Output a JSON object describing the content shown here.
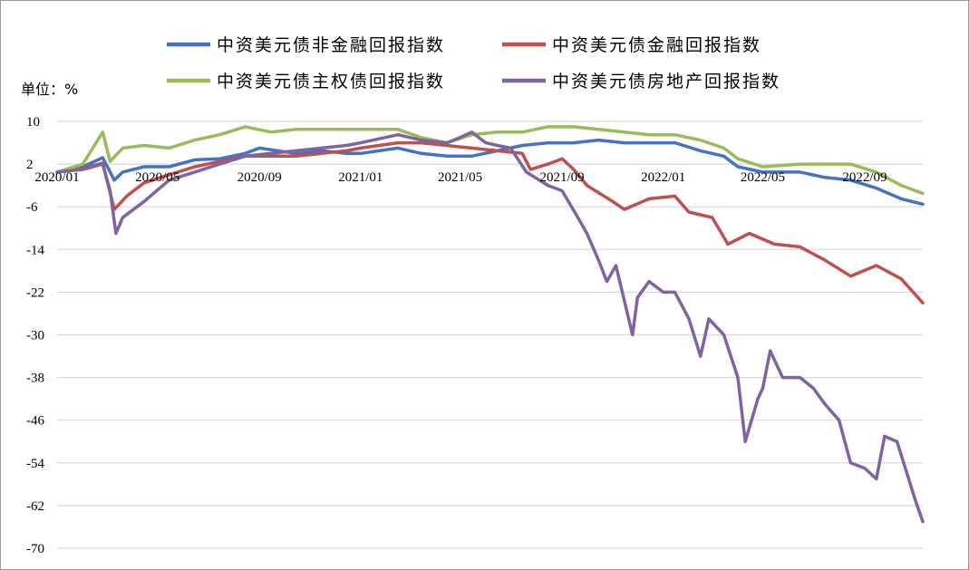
{
  "chart_data": {
    "type": "line",
    "ylabel": "单位：%",
    "ylim": [
      -70,
      10
    ],
    "yticks": [
      10,
      2,
      -6,
      -14,
      -22,
      -30,
      -38,
      -46,
      -54,
      -62,
      -70
    ],
    "x_ticks": [
      "2020/01",
      "2020/05",
      "2020/09",
      "2021/01",
      "2021/05",
      "2021/09",
      "2022/01",
      "2022/05",
      "2022/09"
    ],
    "x_range": [
      "2020/01",
      "2022/11"
    ],
    "grid": "horizontal",
    "legend_position": "top",
    "series": [
      {
        "name": "中资美元债非金融回报指数",
        "color": "#4472c4",
        "points": [
          [
            "2020/01/01",
            0.5
          ],
          [
            "2020/02/01",
            1.5
          ],
          [
            "2020/02/25",
            3.2
          ],
          [
            "2020/03/10",
            -1.0
          ],
          [
            "2020/03/20",
            0.5
          ],
          [
            "2020/04/15",
            1.5
          ],
          [
            "2020/05/15",
            1.5
          ],
          [
            "2020/06/15",
            2.8
          ],
          [
            "2020/07/15",
            3.0
          ],
          [
            "2020/08/15",
            4.0
          ],
          [
            "2020/09/01",
            5.0
          ],
          [
            "2020/10/15",
            4.0
          ],
          [
            "2020/11/15",
            4.5
          ],
          [
            "2020/12/15",
            4.0
          ],
          [
            "2021/01/01",
            4.0
          ],
          [
            "2021/02/15",
            5.0
          ],
          [
            "2021/03/15",
            4.0
          ],
          [
            "2021/04/15",
            3.5
          ],
          [
            "2021/05/15",
            3.5
          ],
          [
            "2021/06/15",
            4.5
          ],
          [
            "2021/07/15",
            5.5
          ],
          [
            "2021/08/15",
            6.0
          ],
          [
            "2021/09/15",
            6.0
          ],
          [
            "2021/10/15",
            6.5
          ],
          [
            "2021/11/15",
            6.0
          ],
          [
            "2021/12/15",
            6.0
          ],
          [
            "2022/01/15",
            6.0
          ],
          [
            "2022/02/15",
            4.5
          ],
          [
            "2022/03/15",
            3.5
          ],
          [
            "2022/04/01",
            1.5
          ],
          [
            "2022/05/01",
            0.5
          ],
          [
            "2022/06/15",
            0.5
          ],
          [
            "2022/07/15",
            -0.5
          ],
          [
            "2022/08/15",
            -1.0
          ],
          [
            "2022/09/15",
            -2.5
          ],
          [
            "2022/10/15",
            -4.5
          ],
          [
            "2022/11/10",
            -5.5
          ]
        ]
      },
      {
        "name": "中资美元债金融回报指数",
        "color": "#c0504d",
        "points": [
          [
            "2020/01/01",
            0.5
          ],
          [
            "2020/02/01",
            1.2
          ],
          [
            "2020/02/25",
            2.2
          ],
          [
            "2020/03/10",
            -6.5
          ],
          [
            "2020/03/25",
            -4.0
          ],
          [
            "2020/04/15",
            -1.5
          ],
          [
            "2020/05/15",
            0.0
          ],
          [
            "2020/06/15",
            1.5
          ],
          [
            "2020/07/15",
            2.5
          ],
          [
            "2020/08/15",
            3.5
          ],
          [
            "2020/09/15",
            3.5
          ],
          [
            "2020/10/15",
            3.5
          ],
          [
            "2020/11/15",
            4.0
          ],
          [
            "2020/12/15",
            4.5
          ],
          [
            "2021/01/01",
            5.0
          ],
          [
            "2021/02/15",
            6.0
          ],
          [
            "2021/03/15",
            6.0
          ],
          [
            "2021/04/15",
            5.5
          ],
          [
            "2021/05/15",
            5.0
          ],
          [
            "2021/06/15",
            4.5
          ],
          [
            "2021/07/15",
            4.0
          ],
          [
            "2021/07/25",
            1.0
          ],
          [
            "2021/08/15",
            2.0
          ],
          [
            "2021/09/01",
            3.0
          ],
          [
            "2021/09/15",
            1.0
          ],
          [
            "2021/10/01",
            -2.0
          ],
          [
            "2021/11/01",
            -5.0
          ],
          [
            "2021/11/15",
            -6.5
          ],
          [
            "2021/12/15",
            -4.5
          ],
          [
            "2022/01/15",
            -4.0
          ],
          [
            "2022/02/01",
            -7.0
          ],
          [
            "2022/03/01",
            -8.0
          ],
          [
            "2022/03/20",
            -13.0
          ],
          [
            "2022/04/15",
            -11.0
          ],
          [
            "2022/05/15",
            -13.0
          ],
          [
            "2022/06/15",
            -13.5
          ],
          [
            "2022/07/15",
            -16.0
          ],
          [
            "2022/08/15",
            -19.0
          ],
          [
            "2022/09/15",
            -17.0
          ],
          [
            "2022/10/15",
            -19.5
          ],
          [
            "2022/11/10",
            -24.0
          ]
        ]
      },
      {
        "name": "中资美元债主权债回报指数",
        "color": "#9bbb59",
        "points": [
          [
            "2020/01/01",
            0.5
          ],
          [
            "2020/02/01",
            2.0
          ],
          [
            "2020/02/25",
            8.0
          ],
          [
            "2020/03/05",
            2.5
          ],
          [
            "2020/03/20",
            5.0
          ],
          [
            "2020/04/15",
            5.5
          ],
          [
            "2020/05/15",
            5.0
          ],
          [
            "2020/06/15",
            6.5
          ],
          [
            "2020/07/15",
            7.5
          ],
          [
            "2020/08/15",
            9.0
          ],
          [
            "2020/09/15",
            8.0
          ],
          [
            "2020/10/15",
            8.5
          ],
          [
            "2020/11/15",
            8.5
          ],
          [
            "2020/12/15",
            8.5
          ],
          [
            "2021/01/01",
            8.5
          ],
          [
            "2021/02/15",
            8.5
          ],
          [
            "2021/03/15",
            7.0
          ],
          [
            "2021/04/15",
            6.0
          ],
          [
            "2021/05/15",
            7.5
          ],
          [
            "2021/06/15",
            8.0
          ],
          [
            "2021/07/15",
            8.0
          ],
          [
            "2021/08/15",
            9.0
          ],
          [
            "2021/09/15",
            9.0
          ],
          [
            "2021/10/15",
            8.5
          ],
          [
            "2021/11/15",
            8.0
          ],
          [
            "2021/12/15",
            7.5
          ],
          [
            "2022/01/15",
            7.5
          ],
          [
            "2022/02/15",
            6.5
          ],
          [
            "2022/03/15",
            5.0
          ],
          [
            "2022/04/01",
            3.0
          ],
          [
            "2022/05/01",
            1.5
          ],
          [
            "2022/06/15",
            2.0
          ],
          [
            "2022/07/15",
            2.0
          ],
          [
            "2022/08/15",
            2.0
          ],
          [
            "2022/09/15",
            0.5
          ],
          [
            "2022/10/15",
            -2.0
          ],
          [
            "2022/11/10",
            -3.5
          ]
        ]
      },
      {
        "name": "中资美元债房地产回报指数",
        "color": "#8064a2",
        "points": [
          [
            "2020/01/01",
            0.5
          ],
          [
            "2020/02/01",
            1.0
          ],
          [
            "2020/02/25",
            2.0
          ],
          [
            "2020/03/05",
            -3.0
          ],
          [
            "2020/03/12",
            -11.0
          ],
          [
            "2020/03/20",
            -8.0
          ],
          [
            "2020/04/15",
            -5.0
          ],
          [
            "2020/05/15",
            -1.0
          ],
          [
            "2020/06/15",
            0.5
          ],
          [
            "2020/07/15",
            2.0
          ],
          [
            "2020/08/15",
            3.5
          ],
          [
            "2020/09/15",
            4.0
          ],
          [
            "2020/10/15",
            4.5
          ],
          [
            "2020/11/15",
            5.0
          ],
          [
            "2020/12/15",
            5.5
          ],
          [
            "2021/01/01",
            6.0
          ],
          [
            "2021/02/15",
            7.5
          ],
          [
            "2021/03/15",
            6.5
          ],
          [
            "2021/04/15",
            6.0
          ],
          [
            "2021/05/01",
            7.0
          ],
          [
            "2021/05/15",
            8.0
          ],
          [
            "2021/06/01",
            6.0
          ],
          [
            "2021/06/15",
            5.5
          ],
          [
            "2021/07/01",
            5.0
          ],
          [
            "2021/07/20",
            0.5
          ],
          [
            "2021/08/15",
            -2.0
          ],
          [
            "2021/09/01",
            -3.0
          ],
          [
            "2021/09/20",
            -8.0
          ],
          [
            "2021/10/01",
            -11.0
          ],
          [
            "2021/10/15",
            -16.0
          ],
          [
            "2021/10/25",
            -20.0
          ],
          [
            "2021/11/05",
            -17.0
          ],
          [
            "2021/11/25",
            -30.0
          ],
          [
            "2021/12/01",
            -23.0
          ],
          [
            "2021/12/15",
            -20.0
          ],
          [
            "2022/01/01",
            -22.0
          ],
          [
            "2022/01/15",
            -22.0
          ],
          [
            "2022/02/01",
            -27.0
          ],
          [
            "2022/02/15",
            -34.0
          ],
          [
            "2022/02/25",
            -27.0
          ],
          [
            "2022/03/15",
            -30.0
          ],
          [
            "2022/04/01",
            -38.0
          ],
          [
            "2022/04/10",
            -50.0
          ],
          [
            "2022/04/25",
            -42.0
          ],
          [
            "2022/05/01",
            -40.0
          ],
          [
            "2022/05/10",
            -33.0
          ],
          [
            "2022/05/25",
            -38.0
          ],
          [
            "2022/06/15",
            -38.0
          ],
          [
            "2022/07/01",
            -40.0
          ],
          [
            "2022/07/15",
            -43.0
          ],
          [
            "2022/08/01",
            -46.0
          ],
          [
            "2022/08/15",
            -54.0
          ],
          [
            "2022/09/01",
            -55.0
          ],
          [
            "2022/09/15",
            -57.0
          ],
          [
            "2022/09/25",
            -49.0
          ],
          [
            "2022/10/10",
            -50.0
          ],
          [
            "2022/10/20",
            -55.0
          ],
          [
            "2022/11/01",
            -61.0
          ],
          [
            "2022/11/10",
            -65.0
          ]
        ]
      }
    ]
  }
}
